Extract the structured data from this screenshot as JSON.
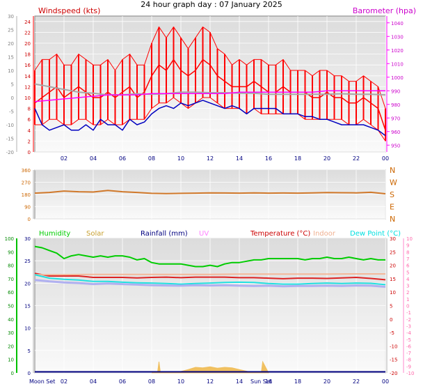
{
  "page_title": "24 hour graph day : 07 January 2025",
  "chart_data": [
    {
      "id": "wind_baro",
      "type": "line",
      "title": "24 hour graph day : 07 January 2025",
      "left_label": "Windspeed (kts)",
      "right_label": "Barometer (hpa)",
      "left_outer_ticks": [
        30,
        25,
        20,
        15,
        10,
        5,
        0,
        -5,
        -10,
        -15,
        -20
      ],
      "left_inner_ticks": [
        24,
        22,
        20,
        18,
        16,
        14,
        12,
        10,
        8,
        6,
        4,
        2,
        0
      ],
      "right_ticks": [
        1040,
        1030,
        1020,
        1010,
        1000,
        990,
        980,
        970,
        960,
        950
      ],
      "x_tick_labels": [
        "02",
        "04",
        "06",
        "08",
        "10",
        "12",
        "14",
        "16",
        "18",
        "20",
        "22",
        "00"
      ],
      "ylim_wind": [
        0,
        25
      ],
      "series": [
        {
          "name": "Windspeed (kts)",
          "color": "#ff0000",
          "x": [
            0,
            0.5,
            1,
            1.5,
            2,
            2.5,
            3,
            3.5,
            4,
            4.5,
            5,
            5.5,
            6,
            6.5,
            7,
            7.5,
            8,
            8.5,
            9,
            9.5,
            10,
            10.5,
            11,
            11.5,
            12,
            12.5,
            13,
            13.5,
            14,
            14.5,
            15,
            15.5,
            16,
            16.5,
            17,
            17.5,
            18,
            18.5,
            19,
            19.5,
            20,
            20.5,
            21,
            21.5,
            22,
            22.5,
            23,
            23.5,
            24
          ],
          "values": [
            9,
            10,
            11,
            12,
            10,
            11,
            12,
            11,
            10,
            10,
            11,
            10,
            11,
            12,
            10,
            11,
            14,
            16,
            15,
            17,
            15,
            14,
            15,
            17,
            16,
            14,
            13,
            12,
            12,
            12,
            13,
            12,
            11,
            11,
            12,
            11,
            11,
            11,
            10,
            10,
            11,
            10,
            10,
            9,
            9,
            10,
            9,
            8,
            4
          ]
        },
        {
          "name": "Wind gust",
          "color": "#ff0000",
          "x": [
            0,
            0.5,
            1,
            1.5,
            2,
            2.5,
            3,
            3.5,
            4,
            4.5,
            5,
            5.5,
            6,
            6.5,
            7,
            7.5,
            8,
            8.5,
            9,
            9.5,
            10,
            10.5,
            11,
            11.5,
            12,
            12.5,
            13,
            13.5,
            14,
            14.5,
            15,
            15.5,
            16,
            16.5,
            17,
            17.5,
            18,
            18.5,
            19,
            19.5,
            20,
            20.5,
            21,
            21.5,
            22,
            22.5,
            23,
            23.5,
            24
          ],
          "values": [
            15,
            17,
            17,
            18,
            16,
            16,
            18,
            17,
            16,
            16,
            17,
            15,
            17,
            18,
            16,
            16,
            20,
            23,
            21,
            23,
            21,
            19,
            21,
            23,
            22,
            19,
            18,
            16,
            17,
            16,
            17,
            17,
            16,
            16,
            17,
            15,
            15,
            15,
            14,
            15,
            15,
            14,
            14,
            13,
            13,
            14,
            13,
            12,
            8
          ]
        },
        {
          "name": "Wind min",
          "color": "#ff0000",
          "x": [
            0,
            0.5,
            1,
            1.5,
            2,
            2.5,
            3,
            3.5,
            4,
            4.5,
            5,
            5.5,
            6,
            6.5,
            7,
            7.5,
            8,
            8.5,
            9,
            9.5,
            10,
            10.5,
            11,
            11.5,
            12,
            12.5,
            13,
            13.5,
            14,
            14.5,
            15,
            15.5,
            16,
            16.5,
            17,
            17.5,
            18,
            18.5,
            19,
            19.5,
            20,
            20.5,
            21,
            21.5,
            22,
            22.5,
            23,
            23.5,
            24
          ],
          "values": [
            5,
            5,
            6,
            6,
            5,
            5,
            6,
            6,
            5,
            5,
            6,
            5,
            5,
            6,
            6,
            6,
            8,
            9,
            9,
            10,
            9,
            8,
            9,
            10,
            10,
            9,
            8,
            8,
            8,
            7,
            8,
            7,
            7,
            7,
            7,
            7,
            7,
            6,
            6,
            6,
            6,
            6,
            6,
            5,
            5,
            6,
            5,
            4,
            2
          ]
        },
        {
          "name": "Wind average",
          "color": "#a8a8a8",
          "x": [
            0,
            1,
            2,
            3,
            4,
            5,
            6,
            7,
            8,
            9,
            10,
            11,
            12,
            13,
            14,
            15,
            16,
            17,
            18,
            19,
            20,
            21,
            22,
            23,
            24
          ],
          "values": [
            12.5,
            12,
            11.5,
            11,
            10.8,
            10.5,
            10.5,
            10.7,
            10.6,
            10.7,
            11,
            11,
            10.9,
            10.9,
            10.8,
            10.8,
            10.6,
            10.6,
            10.6,
            10.6,
            10.6,
            10.7,
            10.6,
            10.6,
            10.5
          ]
        },
        {
          "name": "Barometer (hpa)",
          "color": "#ff00ff",
          "x": [
            0,
            1,
            2,
            3,
            4,
            5,
            6,
            7,
            8,
            9,
            10,
            11,
            12,
            13,
            14,
            15,
            16,
            17,
            18,
            19,
            20,
            21,
            22,
            23,
            24
          ],
          "values": [
            982,
            983,
            984,
            985,
            986,
            987,
            987,
            987,
            988,
            988,
            988,
            988,
            988,
            988,
            989,
            989,
            989,
            989,
            989,
            989,
            990,
            990,
            990,
            990,
            990
          ]
        },
        {
          "name": "Wind direction trace",
          "color": "#0000c0",
          "x": [
            0,
            0.5,
            1,
            1.5,
            2,
            2.5,
            3,
            3.5,
            4,
            4.5,
            5,
            5.5,
            6,
            6.5,
            7,
            7.5,
            8,
            8.5,
            9,
            9.5,
            10,
            10.5,
            11,
            11.5,
            12,
            12.5,
            13,
            13.5,
            14,
            14.5,
            15,
            15.5,
            16,
            16.5,
            17,
            17.5,
            18,
            18.5,
            19,
            19.5,
            20,
            20.5,
            21,
            21.5,
            22,
            22.5,
            23,
            23.5,
            24
          ],
          "values": [
            8,
            5,
            4,
            4.5,
            5,
            4,
            4,
            5,
            4,
            6,
            5,
            5,
            4,
            6,
            5,
            5.5,
            7,
            8,
            8.5,
            8,
            9,
            8.5,
            9,
            9.5,
            9,
            8.5,
            8,
            8.5,
            8,
            7,
            8,
            8,
            8,
            8,
            7,
            7,
            7,
            6.5,
            6.5,
            6,
            6,
            5.5,
            5,
            5,
            5,
            5,
            4.5,
            4,
            3
          ]
        }
      ]
    },
    {
      "id": "wind_dir",
      "type": "line",
      "left_ticks": [
        360,
        270,
        180,
        90,
        0
      ],
      "right_labels": [
        "N",
        "W",
        "S",
        "E",
        "N"
      ],
      "ylim": [
        0,
        360
      ],
      "series": [
        {
          "name": "Wind direction",
          "color": "#d0782a",
          "x": [
            0,
            1,
            2,
            3,
            4,
            5,
            6,
            7,
            8,
            9,
            10,
            11,
            12,
            13,
            14,
            15,
            16,
            17,
            18,
            19,
            20,
            21,
            22,
            23,
            24
          ],
          "values": [
            190,
            195,
            205,
            200,
            198,
            210,
            200,
            195,
            188,
            186,
            188,
            190,
            192,
            191,
            190,
            192,
            190,
            191,
            190,
            192,
            194,
            193,
            192,
            196,
            185
          ]
        }
      ]
    },
    {
      "id": "temp_hum",
      "type": "line",
      "legend": [
        {
          "label": "Humidity",
          "color": "#00cc00"
        },
        {
          "label": "Solar",
          "color": "#c8a030"
        },
        {
          "label": "Rainfall (mm)",
          "color": "#000080"
        },
        {
          "label": "UV",
          "color": "#ff80ff"
        },
        {
          "label": "Temperature (°C)",
          "color": "#cc0000"
        },
        {
          "label": "Indoor",
          "color": "#f0b090"
        },
        {
          "label": "Dew Point (°C)",
          "color": "#00e0e0"
        }
      ],
      "left_outer_ticks": [
        100,
        90,
        80,
        70,
        60,
        50,
        40,
        30,
        20,
        10,
        0
      ],
      "left_inner_ticks": [
        30,
        25,
        20,
        15,
        10,
        5,
        0
      ],
      "right_inner_ticks": [
        30,
        25,
        20,
        15,
        10,
        5,
        0,
        -5,
        -10,
        -15,
        -20
      ],
      "right_outer_ticks": [
        10,
        9,
        8,
        7,
        6,
        5,
        4,
        3,
        2,
        1,
        0,
        -1,
        -2,
        -3,
        -4,
        -5,
        -6,
        -7,
        -8,
        -9,
        -10
      ],
      "x_tick_labels": [
        "02",
        "04",
        "06",
        "08",
        "10",
        "12",
        "14",
        "16",
        "18",
        "20",
        "22",
        "00"
      ],
      "annotations": [
        "Moon Set",
        "Sun Set"
      ],
      "series": [
        {
          "name": "Humidity",
          "color": "#00cc00",
          "x": [
            0,
            0.5,
            1,
            1.5,
            2,
            2.5,
            3,
            3.5,
            4,
            4.5,
            5,
            5.5,
            6,
            6.5,
            7,
            7.5,
            8,
            8.5,
            9,
            9.5,
            10,
            10.5,
            11,
            11.5,
            12,
            12.5,
            13,
            13.5,
            14,
            14.5,
            15,
            15.5,
            16,
            16.5,
            17,
            17.5,
            18,
            18.5,
            19,
            19.5,
            20,
            20.5,
            21,
            21.5,
            22,
            22.5,
            23,
            23.5,
            24
          ],
          "values": [
            94,
            93,
            91,
            89,
            85,
            87,
            88,
            87,
            86,
            87,
            86,
            87,
            87,
            86,
            84,
            85,
            82,
            81,
            81,
            81,
            81,
            80,
            79,
            79,
            80,
            79,
            81,
            82,
            82,
            83,
            84,
            84,
            85,
            85,
            85,
            85,
            85,
            84,
            85,
            85,
            86,
            85,
            85,
            86,
            85,
            84,
            85,
            84,
            84
          ]
        },
        {
          "name": "Temperature (°C)",
          "color": "#dd2222",
          "x": [
            0,
            1,
            2,
            3,
            4,
            5,
            6,
            7,
            8,
            9,
            10,
            11,
            12,
            13,
            14,
            15,
            16,
            17,
            18,
            19,
            20,
            21,
            22,
            23,
            24
          ],
          "values": [
            17,
            16,
            16,
            16,
            15.5,
            15.5,
            15.5,
            15.3,
            15.5,
            15.6,
            15.4,
            15.6,
            15.6,
            15.6,
            15.4,
            15.4,
            15.2,
            15.0,
            15.2,
            15.2,
            15.1,
            15.3,
            15.5,
            15.1,
            14.6
          ]
        },
        {
          "name": "Indoor",
          "color": "#f4b89a",
          "x": [
            0,
            2,
            4,
            6,
            8,
            10,
            12,
            14,
            16,
            18,
            20,
            22,
            24
          ],
          "values": [
            16.5,
            16.5,
            16.6,
            16.6,
            16.6,
            16.6,
            16.6,
            16.7,
            16.7,
            16.7,
            16.7,
            16.8,
            16.8
          ]
        },
        {
          "name": "Dew Point (°C)",
          "color": "#20e0e0",
          "x": [
            0,
            1,
            2,
            3,
            4,
            5,
            6,
            7,
            8,
            9,
            10,
            11,
            12,
            13,
            14,
            15,
            16,
            17,
            18,
            19,
            20,
            21,
            22,
            23,
            24
          ],
          "values": [
            16.5,
            15.2,
            14.8,
            14.5,
            14.0,
            14.0,
            13.7,
            13.5,
            13.4,
            13.2,
            13.0,
            13.2,
            13.4,
            13.6,
            13.7,
            13.6,
            13.2,
            13.0,
            13.0,
            13.2,
            13.4,
            13.2,
            13.4,
            13.3,
            12.8
          ]
        },
        {
          "name": "UV",
          "color": "#b0b0f0",
          "x": [
            0,
            1,
            2,
            3,
            4,
            5,
            6,
            7,
            8,
            9,
            10,
            11,
            12,
            13,
            14,
            15,
            16,
            17,
            18,
            19,
            20,
            21,
            22,
            23,
            24
          ],
          "values": [
            14.5,
            14.0,
            13.6,
            13.4,
            13.0,
            13.2,
            13.0,
            12.8,
            12.6,
            12.5,
            12.4,
            12.6,
            12.5,
            12.6,
            12.4,
            12.3,
            12.4,
            12.2,
            12.3,
            12.3,
            12.4,
            12.3,
            12.5,
            12.4,
            12.0
          ]
        },
        {
          "name": "Solar",
          "color": "#f0c060",
          "x": [
            8,
            8.4,
            8.5,
            8.6,
            9,
            10,
            10.5,
            11,
            11.5,
            12,
            12.5,
            13,
            13.5,
            14,
            14.5,
            15,
            15.5,
            15.6,
            16
          ],
          "values": [
            0,
            0,
            4,
            0,
            0,
            0.5,
            1.2,
            2,
            1.8,
            2.2,
            1.7,
            2,
            1.8,
            1.2,
            0.6,
            0,
            0,
            4,
            0
          ]
        },
        {
          "name": "Rainfall (mm)",
          "color": "#000080",
          "x": [
            0,
            24
          ],
          "values": [
            0.4,
            0.4
          ]
        }
      ]
    }
  ]
}
